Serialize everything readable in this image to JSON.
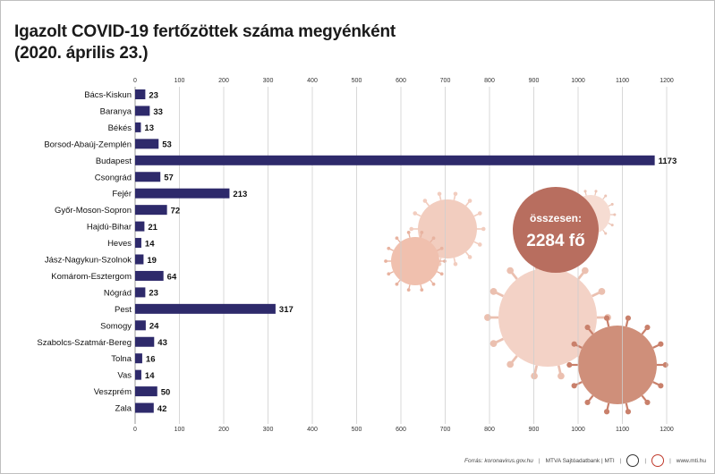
{
  "title": {
    "line1": "Igazolt COVID-19 fertőzöttek száma megyénként",
    "line2": "(2020. április 23.)"
  },
  "total": {
    "label": "összesen:",
    "value": "2284 fő"
  },
  "footer": {
    "source": "Forrás: koronavirus.gov.hu",
    "credit": "MTVA Sajtóadatbank | MTI",
    "logo_a": "MTVA",
    "logo_b": "MTI",
    "site": "www.mti.hu"
  },
  "colors": {
    "bar": "#2e2a6b",
    "grid": "#cfcfcf",
    "badge": "#b86e5f",
    "virus_light": "#f2cdbf",
    "virus_dark": "#cf8f7a"
  },
  "chart_data": {
    "type": "bar",
    "orientation": "horizontal",
    "categories": [
      "Bács-Kiskun",
      "Baranya",
      "Békés",
      "Borsod-Abaúj-Zemplén",
      "Budapest",
      "Csongrád",
      "Fejér",
      "Győr-Moson-Sopron",
      "Hajdú-Bihar",
      "Heves",
      "Jász-Nagykun-Szolnok",
      "Komárom-Esztergom",
      "Nógrád",
      "Pest",
      "Somogy",
      "Szabolcs-Szatmár-Bereg",
      "Tolna",
      "Vas",
      "Veszprém",
      "Zala"
    ],
    "values": [
      23,
      33,
      13,
      53,
      1173,
      57,
      213,
      72,
      21,
      14,
      19,
      64,
      23,
      317,
      24,
      43,
      16,
      14,
      50,
      42
    ],
    "xlim": [
      0,
      1200
    ],
    "xticks": [
      0,
      100,
      200,
      300,
      400,
      500,
      600,
      700,
      800,
      900,
      1000,
      1100,
      1200
    ],
    "xtick_position": "top and bottom",
    "grid": true,
    "title": "Igazolt COVID-19 fertőzöttek száma megyénként",
    "subtitle": "(2020. április 23.)"
  }
}
